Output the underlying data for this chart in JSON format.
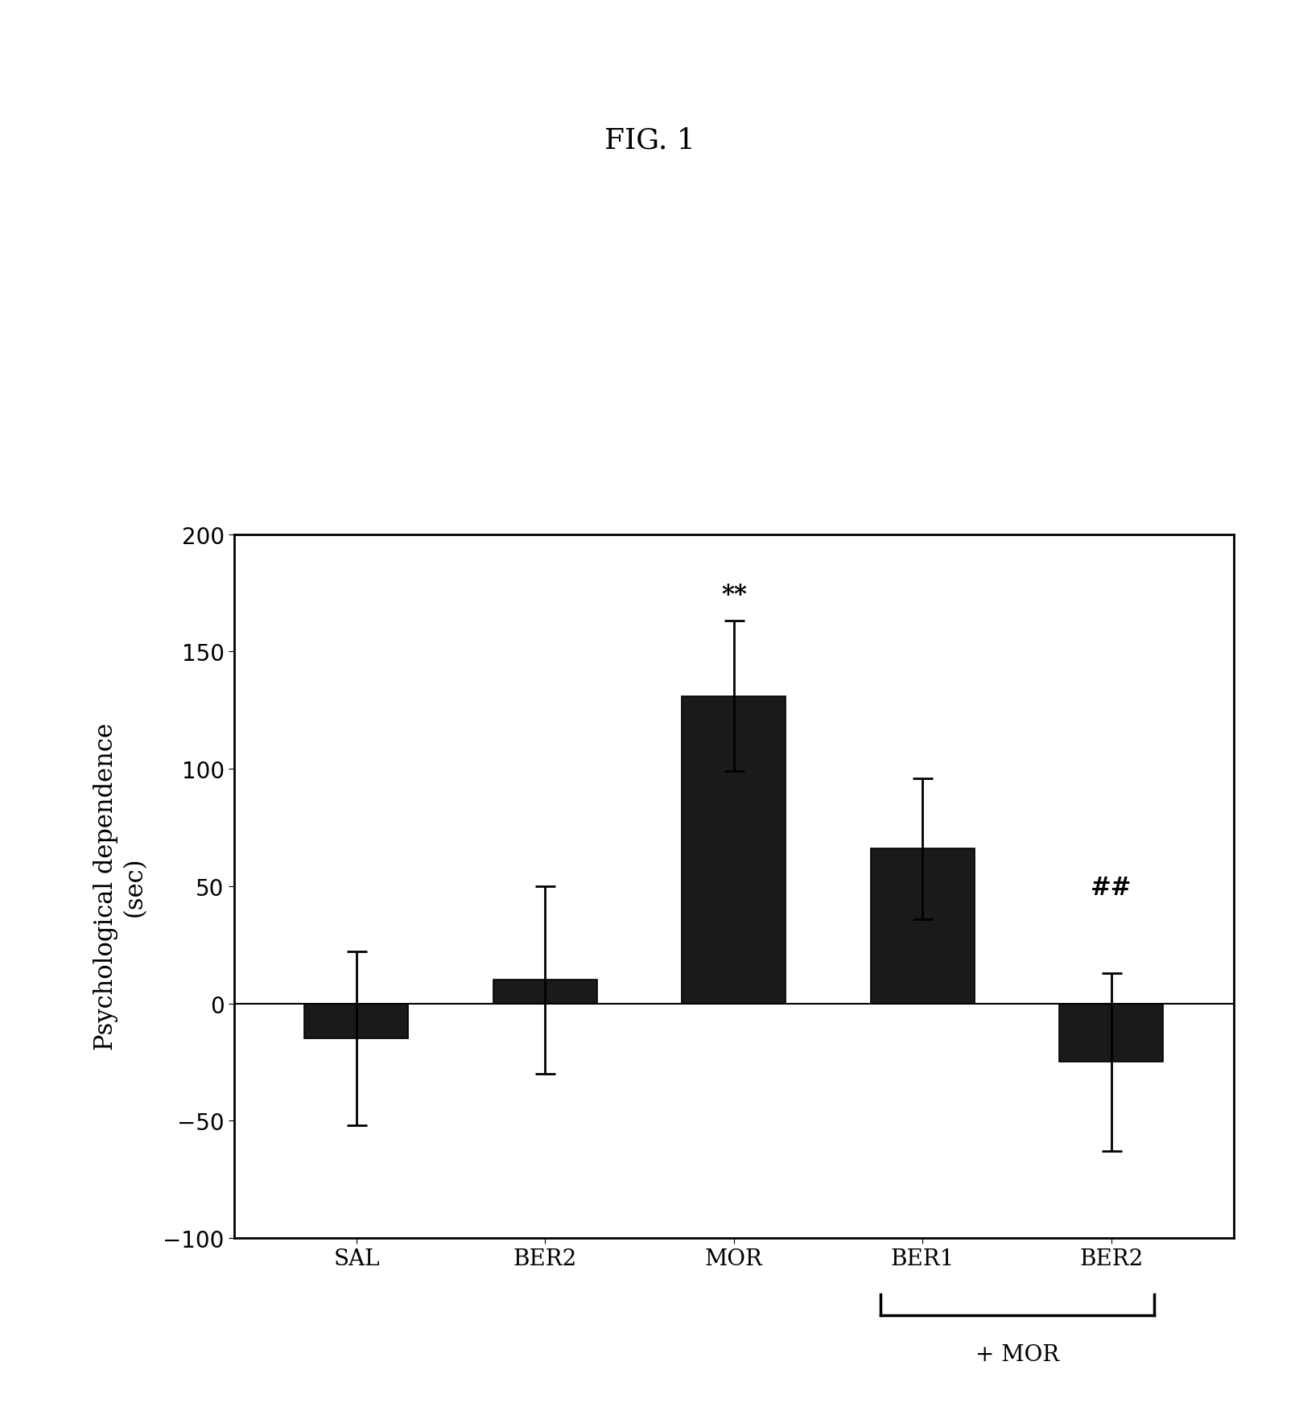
{
  "title": "FIG. 1",
  "ylabel_line1": "Psychological dependence",
  "ylabel_line2": "(sec)",
  "categories": [
    "SAL",
    "BER2",
    "MOR",
    "BER1",
    "BER2"
  ],
  "values": [
    -15,
    10,
    131,
    66,
    -25
  ],
  "errors": [
    37,
    40,
    32,
    30,
    38
  ],
  "ylim": [
    -100,
    200
  ],
  "yticks": [
    -100,
    -50,
    0,
    50,
    100,
    150,
    200
  ],
  "bar_color": "#1a1a1a",
  "bar_width": 0.55,
  "annotations": {
    "2": "**",
    "4": "##"
  },
  "bracket_label": "+ MOR",
  "background_color": "#ffffff",
  "title_fontsize": 26,
  "label_fontsize": 22,
  "tick_fontsize": 20,
  "annot_fontsize": 22
}
